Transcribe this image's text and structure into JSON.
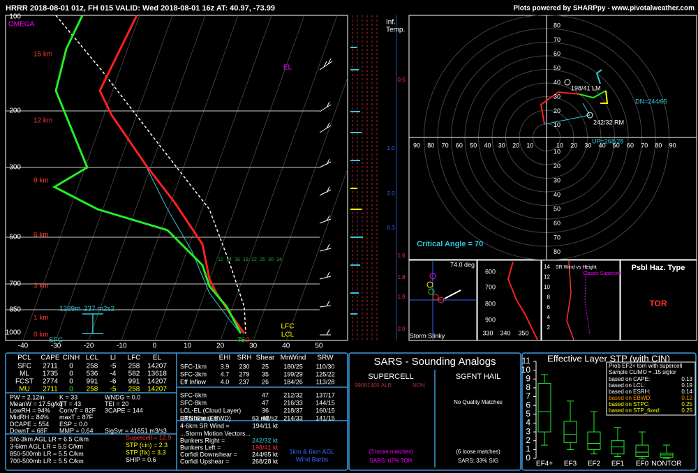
{
  "header": {
    "title": "HRRR 2018-08-01 01z, FH 015    VALID: Wed 2018-08-01 16z    AT: 40.97, -73.99",
    "credit": "Plots powered by SHARPpy - www.pivotalweather.com"
  },
  "skewt": {
    "omega": "OMEGA",
    "pressure_labels": [
      "100",
      "200",
      "300",
      "500",
      "700",
      "850",
      "1000"
    ],
    "height_labels": [
      "15 km",
      "12 km",
      "9 km",
      "6 km",
      "3 km",
      "1 km",
      "0 km"
    ],
    "temp_labels": [
      "-40",
      "-30",
      "-20",
      "-10",
      "0",
      "10",
      "20",
      "30",
      "40",
      "50"
    ],
    "mix_labels": [
      "12",
      "14",
      "16",
      "18",
      "22",
      "26",
      "30",
      "34"
    ],
    "el": "EL",
    "lfc": "LFC",
    "lcl": "LCL",
    "sfc": "SFC",
    "eff_depth": "1289m",
    "eff_srh": "237 m2s2",
    "sfc_td": "76",
    "sfc_t": "0"
  },
  "inferred": {
    "title": [
      "Inf.",
      "Temp."
    ],
    "labels": [
      "0.5",
      "1.0",
      "2.0",
      "0.3",
      "1.6",
      "1.8",
      "1.9",
      "2.0"
    ]
  },
  "hodograph": {
    "ring_labels_up": [
      "80",
      "70",
      "60",
      "50",
      "40",
      "30",
      "20",
      "10"
    ],
    "ring_labels_down": [
      "10",
      "20",
      "30",
      "40",
      "50",
      "60",
      "70",
      "80"
    ],
    "ring_labels_left": [
      "90",
      "80",
      "70",
      "60",
      "50",
      "40",
      "30",
      "20",
      "10"
    ],
    "ring_labels_right": [
      "10",
      "20",
      "30",
      "40",
      "50",
      "60",
      "70",
      "80",
      "90"
    ],
    "lm": "198/41 LM",
    "rm": "242/32 RM",
    "dn": "DN=244/65",
    "up": "UP=268/28",
    "critical_angle": "Critical Angle = 70"
  },
  "slinky": {
    "angle": "74.0 deg",
    "title": "Storm Slinky"
  },
  "theta": {
    "y_labels": [
      "600",
      "700",
      "800",
      "900"
    ],
    "x_labels": [
      "330",
      "340",
      "350"
    ]
  },
  "srwind": {
    "title": "SR Wind vs Height",
    "note": "Classic Supercell",
    "y_labels": [
      "14",
      "12",
      "10",
      "8",
      "6",
      "4",
      "2"
    ]
  },
  "hazard": {
    "title": "Psbl Haz. Type",
    "value": "TOR"
  },
  "thermo": {
    "header": [
      "PCL",
      "CAPE",
      "CINH",
      "LCL",
      "LI",
      "LFC",
      "EL"
    ],
    "rows": [
      [
        "SFC",
        "2711",
        "0",
        "258",
        "-5",
        "258",
        "14207"
      ],
      [
        "ML",
        "1735",
        "0",
        "536",
        "-4",
        "582",
        "13618"
      ],
      [
        "FCST",
        "2774",
        "0",
        "991",
        "-6",
        "991",
        "14207"
      ],
      [
        "MU",
        "2711",
        "0",
        "258",
        "-5",
        "258",
        "14207"
      ]
    ],
    "indices": [
      [
        "PW = 2.12in",
        "K = 33",
        "WNDG = 0.0"
      ],
      [
        "MeanW = 17.5g/kg",
        "TT = 43",
        "TEI = 20"
      ],
      [
        "LowRH = 94%",
        "ConvT = 82F",
        "3CAPE = 144"
      ],
      [
        "MidRH = 84%",
        "maxT = 87F",
        ""
      ],
      [
        "DCAPE = 554",
        "ESP = 0.0",
        ""
      ],
      [
        "DownT = 68F",
        "MMP = 0.64",
        "SigSvr = 41651 m3/s3"
      ]
    ],
    "lapse": [
      "Sfc-3km AGL LR = 6.5 C/km",
      "3-6km AGL LR = 5.5 C/km",
      "850-500mb LR = 5.5 C/km",
      "700-500mb LR = 5.5 C/km"
    ],
    "composite": [
      "Supercell = 12.9",
      "STP (cin) = 2.3",
      "STP (fix) = 3.3",
      "SHIP = 0.6"
    ]
  },
  "kinematic": {
    "header": [
      "EHI",
      "SRH",
      "Shear",
      "MnWind",
      "SRW"
    ],
    "rows": [
      [
        "SFC-1km",
        "3.9",
        "230",
        "25",
        "180/25",
        "110/30"
      ],
      [
        "SFC-3km",
        "4.7",
        "279",
        "35",
        "199/29",
        "125/22"
      ],
      [
        "Eff Inflow",
        "4.0",
        "237",
        "26",
        "184/26",
        "113/28"
      ],
      [
        "SFC-6km",
        "",
        "",
        "47",
        "212/32",
        "137/17"
      ],
      [
        "SFC-8km",
        "",
        "",
        "47",
        "216/33",
        "144/15"
      ],
      [
        "LCL-EL (Cloud Layer)",
        "",
        "",
        "36",
        "218/37",
        "160/15"
      ],
      [
        "Eff Shear (EBWD)",
        "",
        "",
        "48",
        "214/33",
        "141/15"
      ]
    ],
    "extra": [
      [
        "BRN Shear =",
        "63 m2/s2"
      ],
      [
        "4-6km SR Wind =",
        "194/11 kt"
      ]
    ],
    "motion_title": "...Storm Motion Vectors...",
    "motion": [
      [
        "Bunkers Right =",
        "242/32 kt"
      ],
      [
        "Bunkers Left =",
        "198/41 kt"
      ],
      [
        "Corfidi Downshear =",
        "244/65 kt"
      ],
      [
        "Corfidi Upshear =",
        "268/28 kt"
      ]
    ],
    "barb_note": [
      "1km & 6km AGL",
      "Wind Barbs"
    ]
  },
  "sars": {
    "title": "SARS - Sounding Analogs",
    "supercell": "SUPERCELL",
    "hail": "SGFNT HAIL",
    "match": "99081400.ALB",
    "match_type": "NON",
    "hail_none": "No Quality Matches",
    "sc_loose": "(3 loose matches)",
    "hail_loose": "(6 loose matches)",
    "sc_prob": "SARS: 67% TOR",
    "hail_prob": "SARS: 33% SIG"
  },
  "stp": {
    "title": "Effective Layer STP (with CIN)",
    "categories": [
      "EF4+",
      "EF3",
      "EF2",
      "EF1",
      "EF0",
      "NONTOR"
    ],
    "ylim": [
      0,
      11
    ],
    "yticks": [
      0,
      1,
      2,
      3,
      4,
      5,
      6,
      7,
      8,
      9,
      10,
      11
    ],
    "whisker_low": [
      1.5,
      1,
      0.5,
      0.2,
      0,
      0
    ],
    "q1": [
      3,
      1.8,
      1,
      0.5,
      0.2,
      0.1
    ],
    "median": [
      5.3,
      2.7,
      1.7,
      1.3,
      0.7,
      0.4
    ],
    "q3": [
      8.5,
      4.2,
      3,
      2,
      1.5,
      0.6
    ],
    "whisker_high": [
      9.5,
      6.5,
      5.3,
      3.5,
      3,
      1.5
    ],
    "legend": {
      "title": "Prob EF2+ torn with supercell",
      "climo": "Sample CLIMO = .15 sigtor",
      "rows": [
        [
          "based on CAPE:",
          "0.13"
        ],
        [
          "based on LCL:",
          "0.19"
        ],
        [
          "based on ESRH:",
          "0.14"
        ],
        [
          "based on EBWD:",
          "0.12"
        ],
        [
          "based on STPC:",
          "0.25"
        ],
        [
          "based on STP_fixed:",
          "0.25"
        ]
      ]
    }
  }
}
